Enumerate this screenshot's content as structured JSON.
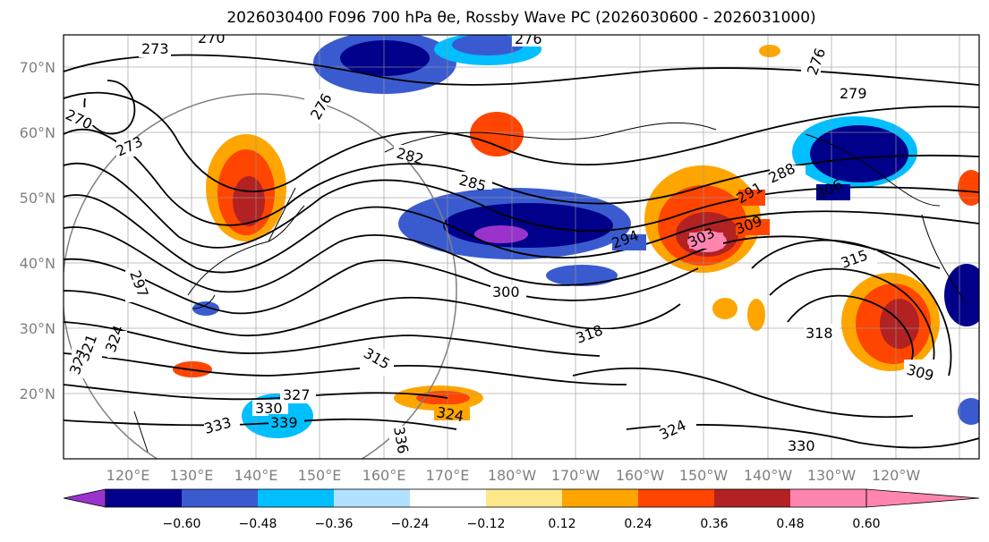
{
  "title": "2026030400 F096 700 hPa θe, Rossby Wave PC (2026030600 - 2026031000)",
  "lat_labels": [
    "70°N",
    "60°N",
    "50°N",
    "40°N",
    "30°N",
    "20°N"
  ],
  "lon_labels": [
    "120°E",
    "130°E",
    "140°E",
    "150°E",
    "160°E",
    "170°E",
    "180°W",
    "170°W",
    "160°W",
    "150°W",
    "140°W",
    "130°W",
    "120°W"
  ],
  "colorbar": {
    "colors": [
      "#9933cc",
      "#00008b",
      "#3a5bd0",
      "#00bfff",
      "#b0e2ff",
      "#ffffff",
      "#ffe88a",
      "#ffa500",
      "#ff4500",
      "#b22222",
      "#ff85b0"
    ],
    "tick_labels": [
      "−0.60",
      "−0.48",
      "−0.36",
      "−0.24",
      "−0.12",
      "0.12",
      "0.24",
      "0.36",
      "0.48",
      "0.60"
    ]
  },
  "contour_labels": [
    "273",
    "270",
    "276",
    "276",
    "279",
    "270",
    "273",
    "276",
    "282",
    "285",
    "288",
    "291",
    "306",
    "294",
    "303",
    "309",
    "297",
    "300",
    "315",
    "318",
    "318",
    "321",
    "324",
    "315",
    "327",
    "330",
    "333",
    "339",
    "336",
    "324",
    "324",
    "330",
    "309",
    "321"
  ]
}
